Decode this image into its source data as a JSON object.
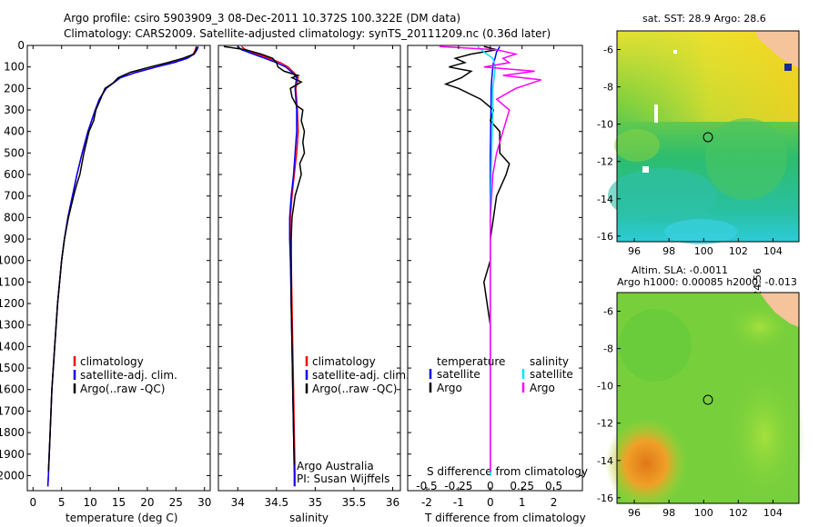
{
  "header": {
    "title_line1": "Argo profile: csiro 5903909_3 08-Dec-2011 10.372S 100.322E (DM data)",
    "title_line2": "Climatology: CARS2009. Satellite-adjusted climatology: synTS_20111209.nc (0.36d later)"
  },
  "colors": {
    "climatology": "#ff0000",
    "satellite": "#0000ff",
    "argo": "#000000",
    "argo_salinity": "#ff00ff",
    "satellite_salinity": "#00e5ff",
    "land": "#f5c49a"
  },
  "chart_data": [
    {
      "type": "line",
      "id": "temperature",
      "xlabel": "temperature (deg C)",
      "xlim": [
        -1,
        31
      ],
      "ylim": [
        0,
        2070
      ],
      "xticks": [
        "0",
        "5",
        "10",
        "15",
        "20",
        "25",
        "30"
      ],
      "yticks": [
        "0",
        "100",
        "200",
        "300",
        "400",
        "500",
        "600",
        "700",
        "800",
        "900",
        "1000",
        "1100",
        "1200",
        "1300",
        "1400",
        "1500",
        "1600",
        "1700",
        "1800",
        "1900",
        "2000"
      ],
      "legend": [
        "climatology",
        "satellite-adj. clim.",
        "Argo(..raw -QC)"
      ],
      "series": [
        {
          "name": "climatology",
          "depth": [
            5,
            20,
            40,
            60,
            80,
            100,
            125,
            150,
            200,
            250,
            300,
            400,
            500,
            600,
            700,
            800,
            900,
            1000,
            1200,
            1400,
            1600,
            1800,
            2000,
            2050
          ],
          "values": [
            28.6,
            28.4,
            28.0,
            26.8,
            24.5,
            21.5,
            18.0,
            15.2,
            12.8,
            11.6,
            10.9,
            9.6,
            8.6,
            7.7,
            6.9,
            6.1,
            5.5,
            5.0,
            4.3,
            3.8,
            3.3,
            3.0,
            2.7,
            2.6
          ]
        },
        {
          "name": "satellite-adj. clim.",
          "depth": [
            5,
            20,
            40,
            60,
            80,
            100,
            125,
            150,
            200,
            250,
            300,
            400,
            500,
            600,
            700,
            800,
            900,
            1000,
            1200,
            1400,
            1600,
            1800,
            2000,
            2050
          ],
          "values": [
            28.9,
            28.7,
            28.2,
            27.0,
            24.7,
            21.6,
            18.1,
            15.3,
            12.8,
            11.6,
            10.9,
            9.6,
            8.6,
            7.7,
            6.9,
            6.1,
            5.5,
            5.0,
            4.3,
            3.8,
            3.3,
            3.0,
            2.7,
            2.6
          ]
        },
        {
          "name": "Argo(..raw -QC)",
          "depth": [
            5,
            20,
            40,
            60,
            80,
            100,
            125,
            150,
            175,
            200,
            250,
            300,
            350,
            400,
            500,
            600,
            650,
            700,
            800,
            900,
            1000,
            1200,
            1400,
            1600,
            1800,
            1980
          ],
          "values": [
            28.6,
            28.5,
            28.2,
            26.2,
            23.6,
            20.5,
            17.0,
            14.9,
            14.0,
            12.6,
            11.8,
            11.0,
            10.6,
            9.8,
            8.9,
            8.2,
            7.6,
            7.1,
            6.2,
            5.5,
            5.0,
            4.3,
            3.8,
            3.3,
            3.0,
            2.7
          ]
        }
      ]
    },
    {
      "type": "line",
      "id": "salinity",
      "xlabel": "salinity",
      "xlim": [
        33.75,
        36.1
      ],
      "ylim": [
        0,
        2070
      ],
      "xticks": [
        "34",
        "34.5",
        "35",
        "35.5",
        "36"
      ],
      "legend": [
        "climatology",
        "satellite-adj. clim.",
        "Argo(..raw -QC)"
      ],
      "annotation": [
        "Argo Australia",
        "PI: Susan Wijffels"
      ],
      "series": [
        {
          "name": "climatology",
          "depth": [
            5,
            20,
            40,
            60,
            80,
            100,
            125,
            150,
            200,
            300,
            400,
            500,
            600,
            700,
            800,
            900,
            1000,
            1200,
            1400,
            1600,
            1800,
            2000,
            2050
          ],
          "values": [
            34.05,
            34.1,
            34.25,
            34.4,
            34.55,
            34.65,
            34.72,
            34.78,
            34.75,
            34.77,
            34.78,
            34.76,
            34.73,
            34.7,
            34.68,
            34.68,
            34.69,
            34.7,
            34.71,
            34.72,
            34.73,
            34.74,
            34.74
          ]
        },
        {
          "name": "satellite-adj. clim.",
          "depth": [
            5,
            20,
            40,
            60,
            80,
            100,
            125,
            150,
            200,
            300,
            400,
            500,
            600,
            700,
            800,
            900,
            1000,
            1200,
            1400,
            1600,
            1800,
            2000,
            2050
          ],
          "values": [
            34.0,
            34.05,
            34.2,
            34.35,
            34.5,
            34.62,
            34.7,
            34.76,
            34.74,
            34.76,
            34.76,
            34.74,
            34.72,
            34.69,
            34.67,
            34.67,
            34.68,
            34.69,
            34.7,
            34.71,
            34.72,
            34.73,
            34.73
          ]
        },
        {
          "name": "Argo(..raw -QC)",
          "depth": [
            5,
            20,
            40,
            60,
            80,
            100,
            120,
            140,
            150,
            170,
            200,
            240,
            280,
            300,
            350,
            400,
            450,
            500,
            550,
            600,
            700,
            800,
            900,
            1000,
            1200,
            1400,
            1600,
            1800,
            1950
          ],
          "values": [
            33.82,
            34.1,
            34.3,
            34.45,
            34.5,
            34.52,
            34.6,
            34.78,
            34.7,
            34.82,
            34.68,
            34.7,
            34.76,
            34.84,
            34.82,
            34.86,
            34.84,
            34.86,
            34.8,
            34.82,
            34.74,
            34.7,
            34.69,
            34.69,
            34.69,
            34.7,
            34.71,
            34.72,
            34.73
          ]
        }
      ]
    },
    {
      "type": "line",
      "id": "difference",
      "xlabel": "T difference from climatology",
      "xlabel_top": "S difference from climatology",
      "xlim": [
        -2.6,
        2.9
      ],
      "ylim": [
        0,
        2070
      ],
      "xticks": [
        "-2",
        "-1",
        "0",
        "1",
        "2"
      ],
      "xticks_top": [
        "-0.5",
        "-0.25",
        "0",
        "0.25",
        "0.5"
      ],
      "legend_titles": [
        "temperature",
        "salinity"
      ],
      "legend": [
        "satellite",
        "Argo",
        "satellite",
        "Argo"
      ],
      "series": [
        {
          "name": "satellite",
          "group": "temperature",
          "depth": [
            5,
            30,
            60,
            80,
            100,
            150,
            200,
            300,
            500,
            800,
            1200,
            2000
          ],
          "values": [
            0.3,
            0.2,
            0.15,
            0.1,
            0.08,
            0.05,
            0.03,
            0.02,
            0.0,
            0.0,
            0.0,
            0.0
          ]
        },
        {
          "name": "Argo",
          "group": "temperature",
          "depth": [
            5,
            20,
            40,
            60,
            80,
            100,
            120,
            150,
            180,
            200,
            250,
            300,
            350,
            400,
            500,
            550,
            600,
            700,
            800,
            900,
            1000,
            1100,
            1200,
            1300,
            1400,
            1600,
            1800,
            1980
          ],
          "values": [
            -0.2,
            0.2,
            -0.6,
            -1.1,
            -0.8,
            -1.3,
            -0.6,
            -0.9,
            -1.4,
            -1.0,
            -0.3,
            0.1,
            0.0,
            0.3,
            0.3,
            0.6,
            0.5,
            0.2,
            0.1,
            0.0,
            0.0,
            -0.2,
            -0.1,
            0.0,
            0.0,
            0.0,
            0.0,
            0.0
          ]
        },
        {
          "name": "satellite",
          "group": "salinity",
          "depth": [
            5,
            30,
            60,
            80,
            100,
            150,
            200,
            300,
            500,
            800,
            1200,
            2000
          ],
          "values": [
            -0.1,
            -0.05,
            0.02,
            0.03,
            0.04,
            0.03,
            0.02,
            0.02,
            0.01,
            0.0,
            0.0,
            0.0
          ]
        },
        {
          "name": "Argo",
          "group": "salinity",
          "depth": [
            5,
            20,
            40,
            60,
            80,
            100,
            120,
            140,
            160,
            200,
            250,
            300,
            400,
            500,
            600,
            800,
            1000,
            1400,
            1800,
            1980
          ],
          "values": [
            -0.4,
            0.05,
            0.2,
            0.1,
            0.15,
            -0.05,
            0.35,
            0.1,
            0.4,
            0.2,
            0.05,
            0.15,
            0.1,
            0.05,
            0.02,
            0.0,
            0.0,
            0.0,
            0.0,
            0.0
          ]
        }
      ]
    },
    {
      "type": "heatmap",
      "id": "sst-map",
      "title": "sat. SST: 28.9 Argo: 28.6",
      "xlim": [
        95,
        105.5
      ],
      "ylim": [
        -16.3,
        -5
      ],
      "xticks": [
        "96",
        "98",
        "100",
        "102",
        "104"
      ],
      "yticks": [
        "-6",
        "-8",
        "-10",
        "-12",
        "-14",
        "-16"
      ],
      "marker": {
        "lon": 100.322,
        "lat": -10.372
      }
    },
    {
      "type": "heatmap",
      "id": "sla-map",
      "title_line1": "Altim. SLA: -0.0011",
      "title_line2": "Argo h1000: 0.00085 h2000: -0.013",
      "xlim": [
        95,
        105.5
      ],
      "ylim": [
        -16.3,
        -5
      ],
      "xticks": [
        "96",
        "98",
        "100",
        "102",
        "104"
      ],
      "yticks": [
        "-6",
        "-8",
        "-10",
        "-12",
        "-14",
        "-16"
      ],
      "marker": {
        "lon": 100.322,
        "lat": -10.372
      }
    }
  ],
  "footer": {
    "credit": "©IMOS 03-Aug-2017 10:24:56"
  }
}
